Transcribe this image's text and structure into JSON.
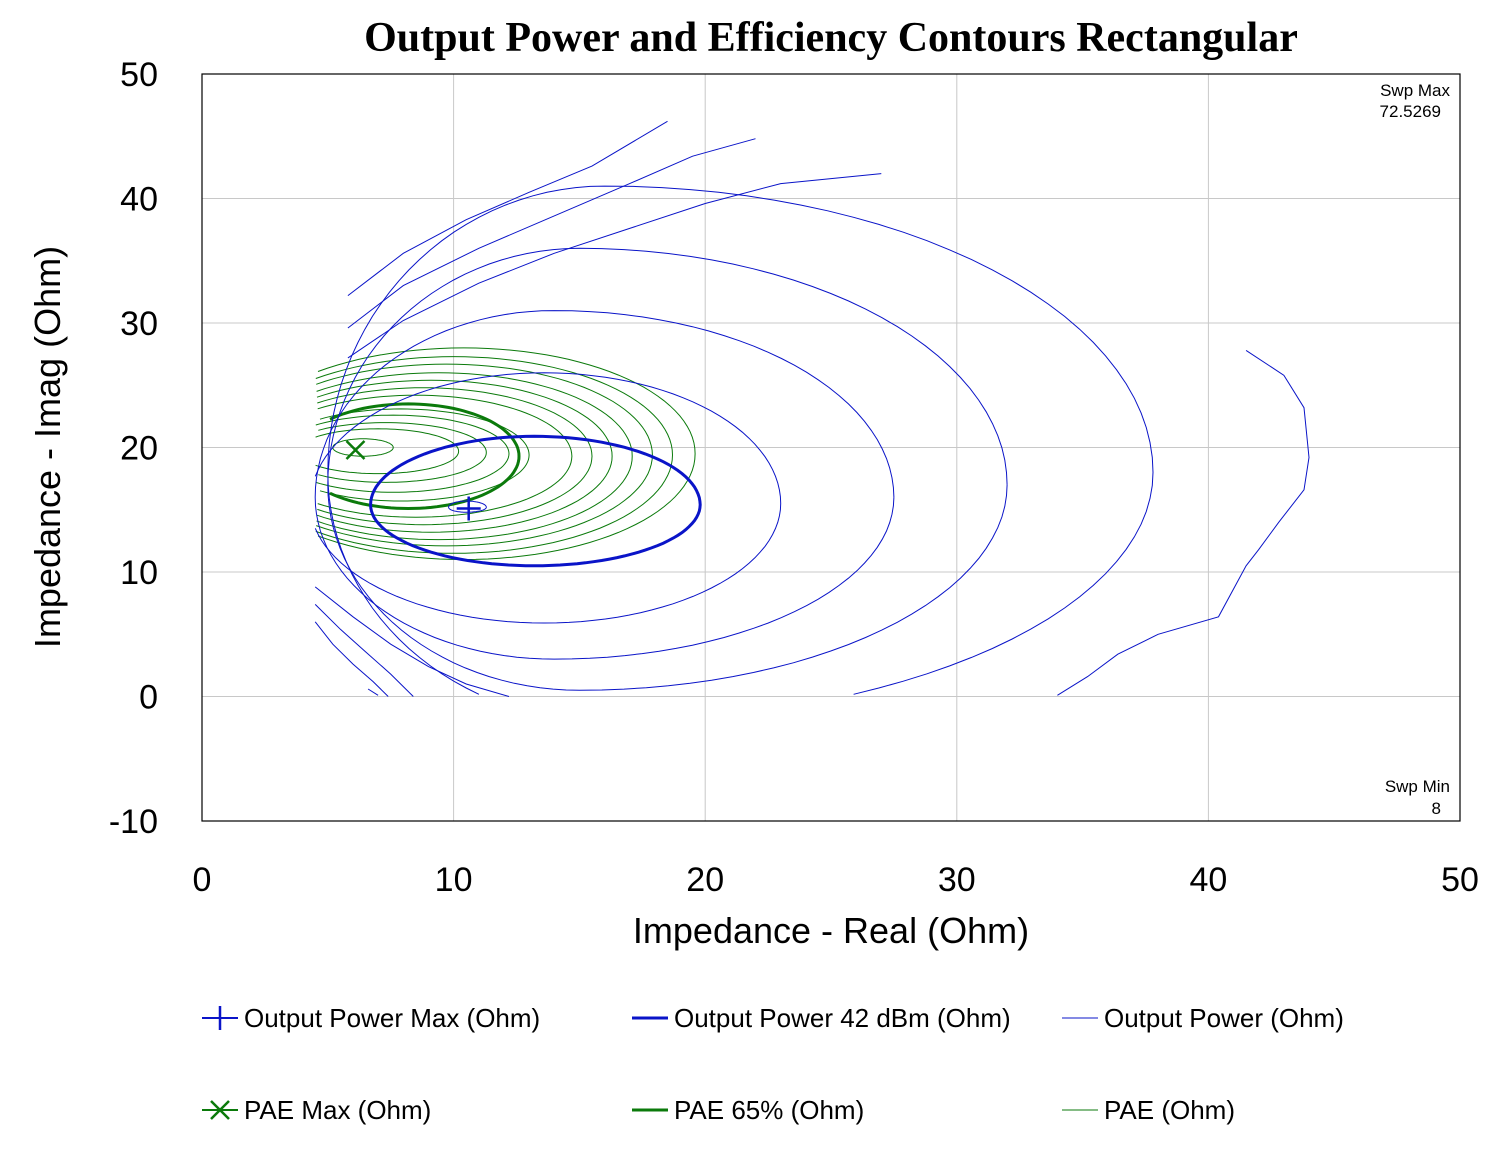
{
  "chart_data": {
    "type": "line",
    "title": "Output Power and Efficiency Contours Rectangular",
    "xlabel": "Impedance - Real (Ohm)",
    "ylabel": "Impedance - Imag (Ohm)",
    "xlim": [
      0,
      50
    ],
    "ylim": [
      -10,
      50
    ],
    "xticks": [
      "0",
      "10",
      "20",
      "30",
      "40",
      "50"
    ],
    "yticks": [
      "50",
      "40",
      "30",
      "20",
      "10",
      "0",
      "-10"
    ],
    "grid": true,
    "legend_position": "bottom",
    "annotations": {
      "swp_max_label": "Swp Max",
      "swp_max_value": "72.5269",
      "swp_min_label": "Swp Min",
      "swp_min_value": "8"
    },
    "colors": {
      "power": "#0a14c8",
      "pae": "#0b7a0b"
    },
    "markers": {
      "power_max": {
        "x": 10.6,
        "y": 15.1
      },
      "pae_max": {
        "x": 6.1,
        "y": 19.8
      }
    },
    "power_contours": [
      {
        "cx": 10.5,
        "cy": 15.2,
        "rxr": 0.8,
        "rxl": 0.7,
        "ryt": 0.5,
        "ryb": 0.4,
        "xmin": 4.5,
        "closed": true
      },
      {
        "cx": 13.2,
        "cy": 15.4,
        "rxr": 6.6,
        "rxl": 6.5,
        "ryt": 5.5,
        "ryb": 4.9,
        "xmin": 4.5,
        "closed": true
      },
      {
        "cx": 13.6,
        "cy": 15.5,
        "rxr": 9.4,
        "rxl": 9.3,
        "ryt": 10.5,
        "ryb": 9.6,
        "xmin": 4.5,
        "closed": false
      },
      {
        "cx": 14.0,
        "cy": 16.0,
        "rxr": 13.5,
        "rxl": 9.5,
        "ryt": 15.0,
        "ryb": 13.0,
        "xmin": 4.5,
        "closed": false
      },
      {
        "cx": 15.0,
        "cy": 17.0,
        "rxr": 17.0,
        "rxl": 10.0,
        "ryt": 19.0,
        "ryb": 16.5,
        "xmin": 4.5,
        "closed": false
      },
      {
        "cx": 16.0,
        "cy": 18.0,
        "rxr": 21.8,
        "rxl": 11.0,
        "ryt": 23.0,
        "ryb": 20.0,
        "xmin": 4.5,
        "closed": false
      }
    ],
    "power_open_curves": [
      {
        "label": "outer-upper-1",
        "points": [
          [
            5.8,
            32.2
          ],
          [
            8,
            35.6
          ],
          [
            10.5,
            38.3
          ],
          [
            13,
            40.5
          ],
          [
            15.5,
            42.6
          ],
          [
            18.5,
            46.2
          ]
        ]
      },
      {
        "label": "outer-upper-2",
        "points": [
          [
            5.8,
            29.6
          ],
          [
            8,
            33.0
          ],
          [
            11,
            36.0
          ],
          [
            14,
            38.6
          ],
          [
            17,
            41.2
          ],
          [
            19.5,
            43.4
          ],
          [
            22,
            44.8
          ]
        ]
      },
      {
        "label": "outer-upper-3",
        "points": [
          [
            5.8,
            27.2
          ],
          [
            8,
            30.2
          ],
          [
            11,
            33.2
          ],
          [
            14,
            35.6
          ],
          [
            17,
            37.6
          ],
          [
            20,
            39.6
          ],
          [
            23,
            41.2
          ],
          [
            27,
            42.0
          ]
        ]
      },
      {
        "label": "outer-right",
        "points": [
          [
            41.5,
            27.8
          ],
          [
            43,
            25.8
          ],
          [
            43.8,
            23.2
          ],
          [
            44.0,
            19.2
          ],
          [
            43.8,
            16.6
          ],
          [
            42.8,
            14.0
          ],
          [
            42,
            11.8
          ],
          [
            41.5,
            10.5
          ],
          [
            40.4,
            6.4
          ],
          [
            38,
            5.0
          ],
          [
            36.4,
            3.4
          ],
          [
            35.2,
            1.6
          ],
          [
            34.0,
            0.1
          ]
        ]
      },
      {
        "label": "outer-lower-1",
        "points": [
          [
            4.5,
            8.8
          ],
          [
            6,
            6.4
          ],
          [
            7.5,
            4.2
          ],
          [
            9,
            2.4
          ],
          [
            10.5,
            1.0
          ],
          [
            12.2,
            0.0
          ]
        ]
      },
      {
        "label": "outer-lower-2",
        "points": [
          [
            4.5,
            7.4
          ],
          [
            5.5,
            5.4
          ],
          [
            6.5,
            3.6
          ],
          [
            7.5,
            1.8
          ],
          [
            8.4,
            0.0
          ]
        ]
      },
      {
        "label": "outer-lower-3",
        "points": [
          [
            4.5,
            6.0
          ],
          [
            5.2,
            4.2
          ],
          [
            6.0,
            2.6
          ],
          [
            6.8,
            1.2
          ],
          [
            7.4,
            0.0
          ]
        ]
      },
      {
        "label": "outer-lower-4",
        "points": [
          [
            6.6,
            0.6
          ],
          [
            7.0,
            0.1
          ]
        ]
      }
    ],
    "pae_contours": [
      {
        "cx": 6.4,
        "cy": 20.0,
        "rx": 1.2,
        "ry": 0.7,
        "closed": true
      },
      {
        "cx": 7.0,
        "cy": 19.7,
        "rx": 3.2,
        "ry": 1.8
      },
      {
        "cx": 7.3,
        "cy": 19.6,
        "rx": 4.0,
        "ry": 2.4
      },
      {
        "cx": 7.6,
        "cy": 19.5,
        "rx": 4.6,
        "ry": 3.1
      },
      {
        "cx": 7.9,
        "cy": 19.4,
        "rx": 5.1,
        "ry": 3.7
      },
      {
        "cx": 8.5,
        "cy": 19.3,
        "rx": 6.2,
        "ry": 4.9
      },
      {
        "cx": 8.8,
        "cy": 19.3,
        "rx": 6.7,
        "ry": 5.5
      },
      {
        "cx": 9.1,
        "cy": 19.3,
        "rx": 7.2,
        "ry": 6.1
      },
      {
        "cx": 9.4,
        "cy": 19.3,
        "rx": 7.7,
        "ry": 6.7
      },
      {
        "cx": 9.7,
        "cy": 19.4,
        "rx": 8.2,
        "ry": 7.3
      },
      {
        "cx": 10.0,
        "cy": 19.4,
        "rx": 8.7,
        "ry": 7.9
      },
      {
        "cx": 10.4,
        "cy": 19.5,
        "rx": 9.2,
        "ry": 8.5
      }
    ],
    "pae_65_contour": {
      "cx": 8.2,
      "cy": 19.3,
      "rx": 4.4,
      "ry": 4.2
    },
    "legend": [
      {
        "key": "power-max",
        "label": "Output Power Max (Ohm)",
        "style": "marker-plus",
        "color": "#0a14c8"
      },
      {
        "key": "power-42",
        "label": "Output Power 42 dBm (Ohm)",
        "style": "thick",
        "color": "#0a14c8"
      },
      {
        "key": "power",
        "label": "Output Power (Ohm)",
        "style": "thin",
        "color": "#0a14c8"
      },
      {
        "key": "pae-max",
        "label": "PAE Max (Ohm)",
        "style": "marker-x",
        "color": "#0b7a0b"
      },
      {
        "key": "pae-65",
        "label": "PAE 65% (Ohm)",
        "style": "thick",
        "color": "#0b7a0b"
      },
      {
        "key": "pae",
        "label": "PAE (Ohm)",
        "style": "thin",
        "color": "#0b7a0b"
      }
    ]
  }
}
